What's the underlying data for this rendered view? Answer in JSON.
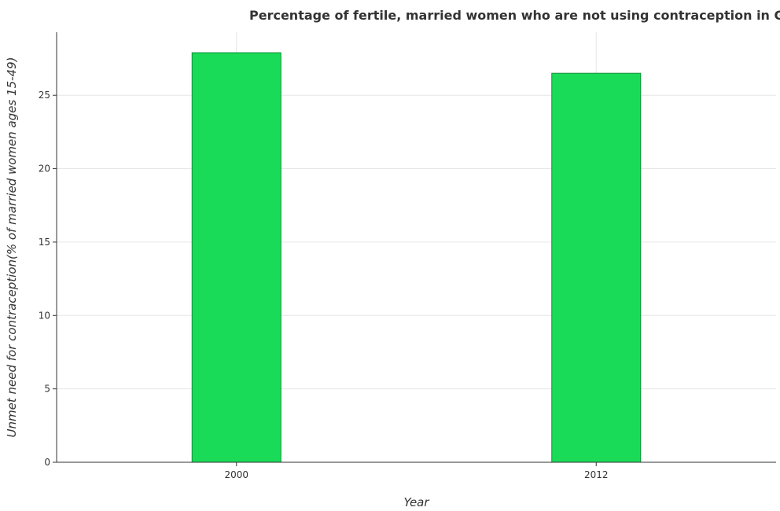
{
  "chart_data": {
    "type": "bar",
    "title": "Percentage of fertile, married women who are not using contraception in Gabon",
    "xlabel": "Year",
    "ylabel": "Unmet need for contraception(% of married women ages 15-49)",
    "categories": [
      "2000",
      "2012"
    ],
    "values": [
      27.9,
      26.5
    ],
    "ylim": [
      0,
      29.295
    ],
    "yticks": [
      0,
      5,
      10,
      15,
      20,
      25
    ],
    "grid": true,
    "bar_color": "#1adb58",
    "bar_edge_color": "#0f8f3a"
  }
}
